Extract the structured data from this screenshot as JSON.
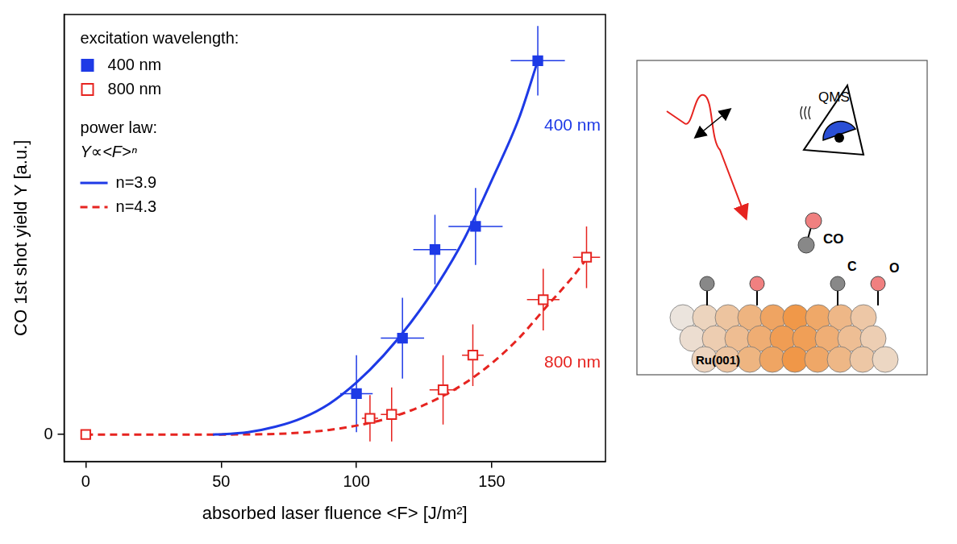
{
  "chart_data": {
    "type": "scatter",
    "x_label": "absorbed laser fluence <F> [J/m²]",
    "y_label": "CO 1st shot yield Y [a.u.]",
    "xlim": [
      -8,
      192
    ],
    "xticks": [
      0,
      50,
      100,
      150
    ],
    "ylim": [
      -7,
      109
    ],
    "yticks": [
      0
    ],
    "grid": false,
    "legend": "upper left",
    "legend_title": "excitation wavelength:",
    "fit_legend_title": "power law:",
    "fit_formula": "Y∝<F>ⁿ",
    "series": [
      {
        "name": "400 nm",
        "type": "scatter",
        "marker": "filled_square",
        "color": "#1e3ae6",
        "x": [
          100,
          117,
          129,
          144,
          167
        ],
        "values": [
          10.6,
          25,
          48,
          54,
          97
        ],
        "x_errors": [
          6,
          8,
          8,
          10,
          10
        ],
        "y_errors": [
          10,
          10.5,
          9,
          10,
          9
        ]
      },
      {
        "name": "800 nm",
        "type": "scatter",
        "marker": "open_square",
        "color": "#e62420",
        "x": [
          0,
          105,
          113,
          132,
          143,
          169,
          185
        ],
        "values": [
          0,
          4.2,
          5.2,
          11.6,
          20.6,
          35,
          46
        ],
        "x_errors": [
          0,
          3,
          4,
          5,
          4,
          6,
          5
        ],
        "y_errors": [
          0,
          6,
          7,
          9,
          8,
          8,
          8
        ]
      },
      {
        "name": "n=3.9",
        "type": "line",
        "line_style": "solid",
        "color": "#1e3ae6",
        "x": [
          47,
          50,
          60,
          70,
          80,
          90,
          100,
          110,
          120,
          130,
          140,
          150,
          160,
          167
        ],
        "values": [
          0,
          0.05,
          0.6,
          2,
          4.3,
          8,
          13.5,
          20.5,
          29,
          39,
          51,
          66,
          82,
          97
        ]
      },
      {
        "name": "n=4.3",
        "type": "line",
        "line_style": "dashed",
        "color": "#e62420",
        "x": [
          0,
          50,
          70,
          80,
          90,
          100,
          110,
          120,
          130,
          140,
          150,
          160,
          170,
          180,
          186
        ],
        "values": [
          0,
          0,
          0.15,
          0.5,
          1.2,
          2.3,
          3.9,
          6.2,
          9.3,
          13.3,
          18.5,
          25,
          33,
          41,
          46.5
        ]
      }
    ],
    "annotations": [
      {
        "text": "400 nm",
        "color": "#1e3ae6"
      },
      {
        "text": "800 nm",
        "color": "#e62420"
      }
    ]
  },
  "diagram": {
    "detector_label": "QMS",
    "molecule_label": "CO",
    "atom_labels": [
      "C",
      "O"
    ],
    "surface_label": "Ru(001)"
  }
}
